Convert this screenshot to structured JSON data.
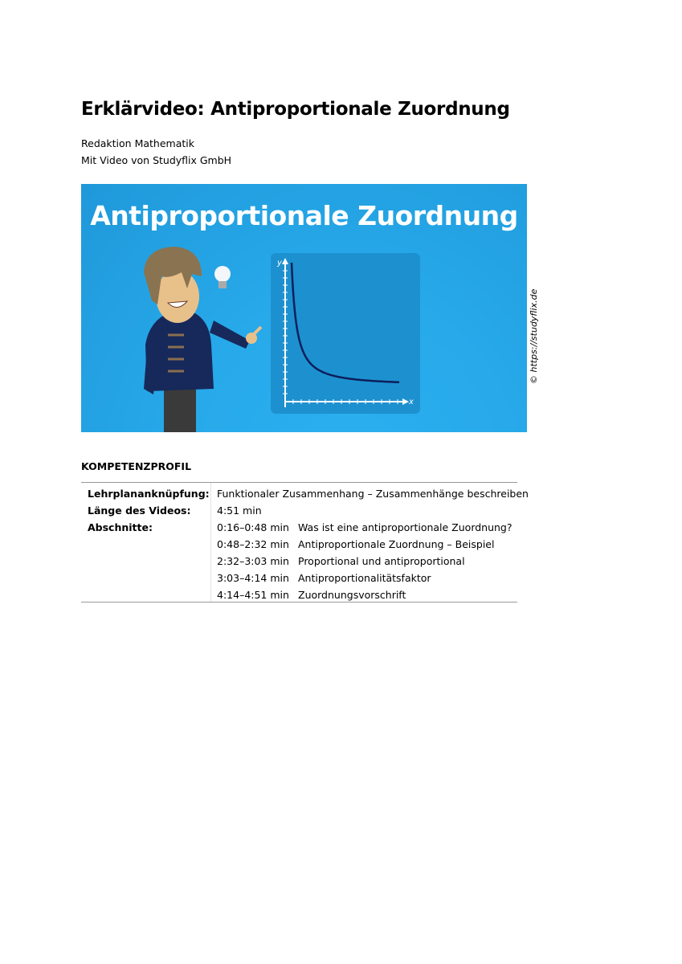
{
  "document": {
    "title": "Erklärvideo: Antiproportionale Zuordnung",
    "author": "Redaktion Mathematik",
    "video_source": "Mit Video von Studyflix GmbH"
  },
  "hero_image": {
    "title": "Antiproportionale Zuordnung",
    "axis_x": "x",
    "axis_y": "y",
    "credit": "© https://studyflix.de",
    "background_color": "#27a9ea"
  },
  "profile": {
    "heading": "KOMPETENZPROFIL",
    "curriculum_label": "Lehrplananknüpfung:",
    "curriculum_value": "Funktionaler Zusammenhang – Zusammenhänge beschreiben",
    "length_label": "Länge des Videos:",
    "length_value": "4:51 min",
    "sections_label": "Abschnitte:",
    "sections": [
      {
        "time": "0:16–0:48 min",
        "title": "Was ist eine antiproportionale Zuordnung?"
      },
      {
        "time": "0:48–2:32 min",
        "title": "Antiproportionale Zuordnung – Beispiel"
      },
      {
        "time": "2:32–3:03 min",
        "title": "Proportional und antiproportional"
      },
      {
        "time": "3:03–4:14 min",
        "title": "Antiproportionalitätsfaktor"
      },
      {
        "time": "4:14–4:51 min",
        "title": "Zuordnungsvorschrift"
      }
    ]
  }
}
